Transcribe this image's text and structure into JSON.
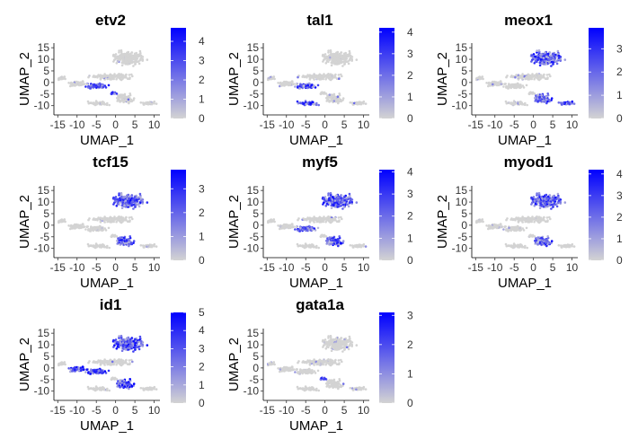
{
  "chart_data": [
    {
      "type": "scatter",
      "title": "etv2",
      "xlabel": "UMAP_1",
      "ylabel": "UMAP_2",
      "xlim": [
        -16,
        11.5
      ],
      "ylim": [
        -14,
        17
      ],
      "xticks": [
        "-15",
        "-10",
        "-5",
        "0",
        "5",
        "10"
      ],
      "yticks": [
        "-10",
        "-5",
        "0",
        "5",
        "10",
        "15"
      ],
      "legend": {
        "min": 0,
        "max": 4.7,
        "ticks": [
          "0",
          "1",
          "2",
          "3",
          "4"
        ],
        "low_color": "#d3d3d3",
        "high_color": "#0000ff"
      },
      "hotspots": [
        "rostral-head-cluster",
        "small-center-island"
      ]
    },
    {
      "type": "scatter",
      "title": "tal1",
      "xlabel": "UMAP_1",
      "ylabel": "UMAP_2",
      "xlim": [
        -16,
        11.5
      ],
      "ylim": [
        -14,
        17
      ],
      "xticks": [
        "-15",
        "-10",
        "-5",
        "0",
        "5",
        "10"
      ],
      "yticks": [
        "-10",
        "-5",
        "0",
        "5",
        "10",
        "15"
      ],
      "legend": {
        "min": 0,
        "max": 4.2,
        "ticks": [
          "0",
          "1",
          "2",
          "3",
          "4"
        ],
        "low_color": "#d3d3d3",
        "high_color": "#0000ff"
      },
      "hotspots": [
        "rostral-head-cluster",
        "lower-left-arm"
      ]
    },
    {
      "type": "scatter",
      "title": "meox1",
      "xlabel": "UMAP_1",
      "ylabel": "UMAP_2",
      "xlim": [
        -16,
        11.5
      ],
      "ylim": [
        -14,
        17
      ],
      "xticks": [
        "-15",
        "-10",
        "-5",
        "0",
        "5",
        "10"
      ],
      "yticks": [
        "-10",
        "-5",
        "0",
        "5",
        "10",
        "15"
      ],
      "legend": {
        "min": 0,
        "max": 3.9,
        "ticks": [
          "0",
          "1",
          "2",
          "3"
        ],
        "low_color": "#d3d3d3",
        "high_color": "#0000ff"
      },
      "hotspots": [
        "upper-right-lobe",
        "lower-center-blob",
        "right-tail"
      ]
    },
    {
      "type": "scatter",
      "title": "tcf15",
      "xlabel": "UMAP_1",
      "ylabel": "UMAP_2",
      "xlim": [
        -16,
        11.5
      ],
      "ylim": [
        -14,
        17
      ],
      "xticks": [
        "-15",
        "-10",
        "-5",
        "0",
        "5",
        "10"
      ],
      "yticks": [
        "-10",
        "-5",
        "0",
        "5",
        "10",
        "15"
      ],
      "legend": {
        "min": 0,
        "max": 3.8,
        "ticks": [
          "0",
          "1",
          "2",
          "3"
        ],
        "low_color": "#d3d3d3",
        "high_color": "#0000ff"
      },
      "hotspots": [
        "upper-right-lobe",
        "lower-center-blob"
      ]
    },
    {
      "type": "scatter",
      "title": "myf5",
      "xlabel": "UMAP_1",
      "ylabel": "UMAP_2",
      "xlim": [
        -16,
        11.5
      ],
      "ylim": [
        -14,
        17
      ],
      "xticks": [
        "-15",
        "-10",
        "-5",
        "0",
        "5",
        "10"
      ],
      "yticks": [
        "-10",
        "-5",
        "0",
        "5",
        "10",
        "15"
      ],
      "legend": {
        "min": 0,
        "max": 4.1,
        "ticks": [
          "0",
          "1",
          "2",
          "3",
          "4"
        ],
        "low_color": "#d3d3d3",
        "high_color": "#0000ff"
      },
      "hotspots": [
        "upper-right-lobe",
        "lower-center-blob",
        "rostral-head-cluster"
      ]
    },
    {
      "type": "scatter",
      "title": "myod1",
      "xlabel": "UMAP_1",
      "ylabel": "UMAP_2",
      "xlim": [
        -16,
        11.5
      ],
      "ylim": [
        -14,
        17
      ],
      "xticks": [
        "-15",
        "-10",
        "-5",
        "0",
        "5",
        "10"
      ],
      "yticks": [
        "-10",
        "-5",
        "0",
        "5",
        "10",
        "15"
      ],
      "legend": {
        "min": 0,
        "max": 4.2,
        "ticks": [
          "0",
          "1",
          "2",
          "3",
          "4"
        ],
        "low_color": "#d3d3d3",
        "high_color": "#0000ff"
      },
      "hotspots": [
        "upper-right-lobe",
        "lower-center-blob"
      ]
    },
    {
      "type": "scatter",
      "title": "id1",
      "xlabel": "UMAP_1",
      "ylabel": "UMAP_2",
      "xlim": [
        -16,
        11.5
      ],
      "ylim": [
        -14,
        17
      ],
      "xticks": [
        "-15",
        "-10",
        "-5",
        "0",
        "5",
        "10"
      ],
      "yticks": [
        "-10",
        "-5",
        "0",
        "5",
        "10",
        "15"
      ],
      "legend": {
        "min": 0,
        "max": 5,
        "ticks": [
          "0",
          "1",
          "2",
          "3",
          "4",
          "5"
        ],
        "low_color": "#d3d3d3",
        "high_color": "#0000ff"
      },
      "hotspots": [
        "rostral-head-cluster",
        "upper-right-lobe",
        "lower-center-blob",
        "left-arm"
      ]
    },
    {
      "type": "scatter",
      "title": "gata1a",
      "xlabel": "UMAP_1",
      "ylabel": "UMAP_2",
      "xlim": [
        -16,
        11.5
      ],
      "ylim": [
        -14,
        17
      ],
      "xticks": [
        "-15",
        "-10",
        "-5",
        "0",
        "5",
        "10"
      ],
      "yticks": [
        "-10",
        "-5",
        "0",
        "5",
        "10",
        "15"
      ],
      "legend": {
        "min": 0,
        "max": 3.1,
        "ticks": [
          "0",
          "1",
          "2",
          "3"
        ],
        "low_color": "#d3d3d3",
        "high_color": "#0000ff"
      },
      "hotspots": [
        "small-center-island"
      ]
    }
  ]
}
